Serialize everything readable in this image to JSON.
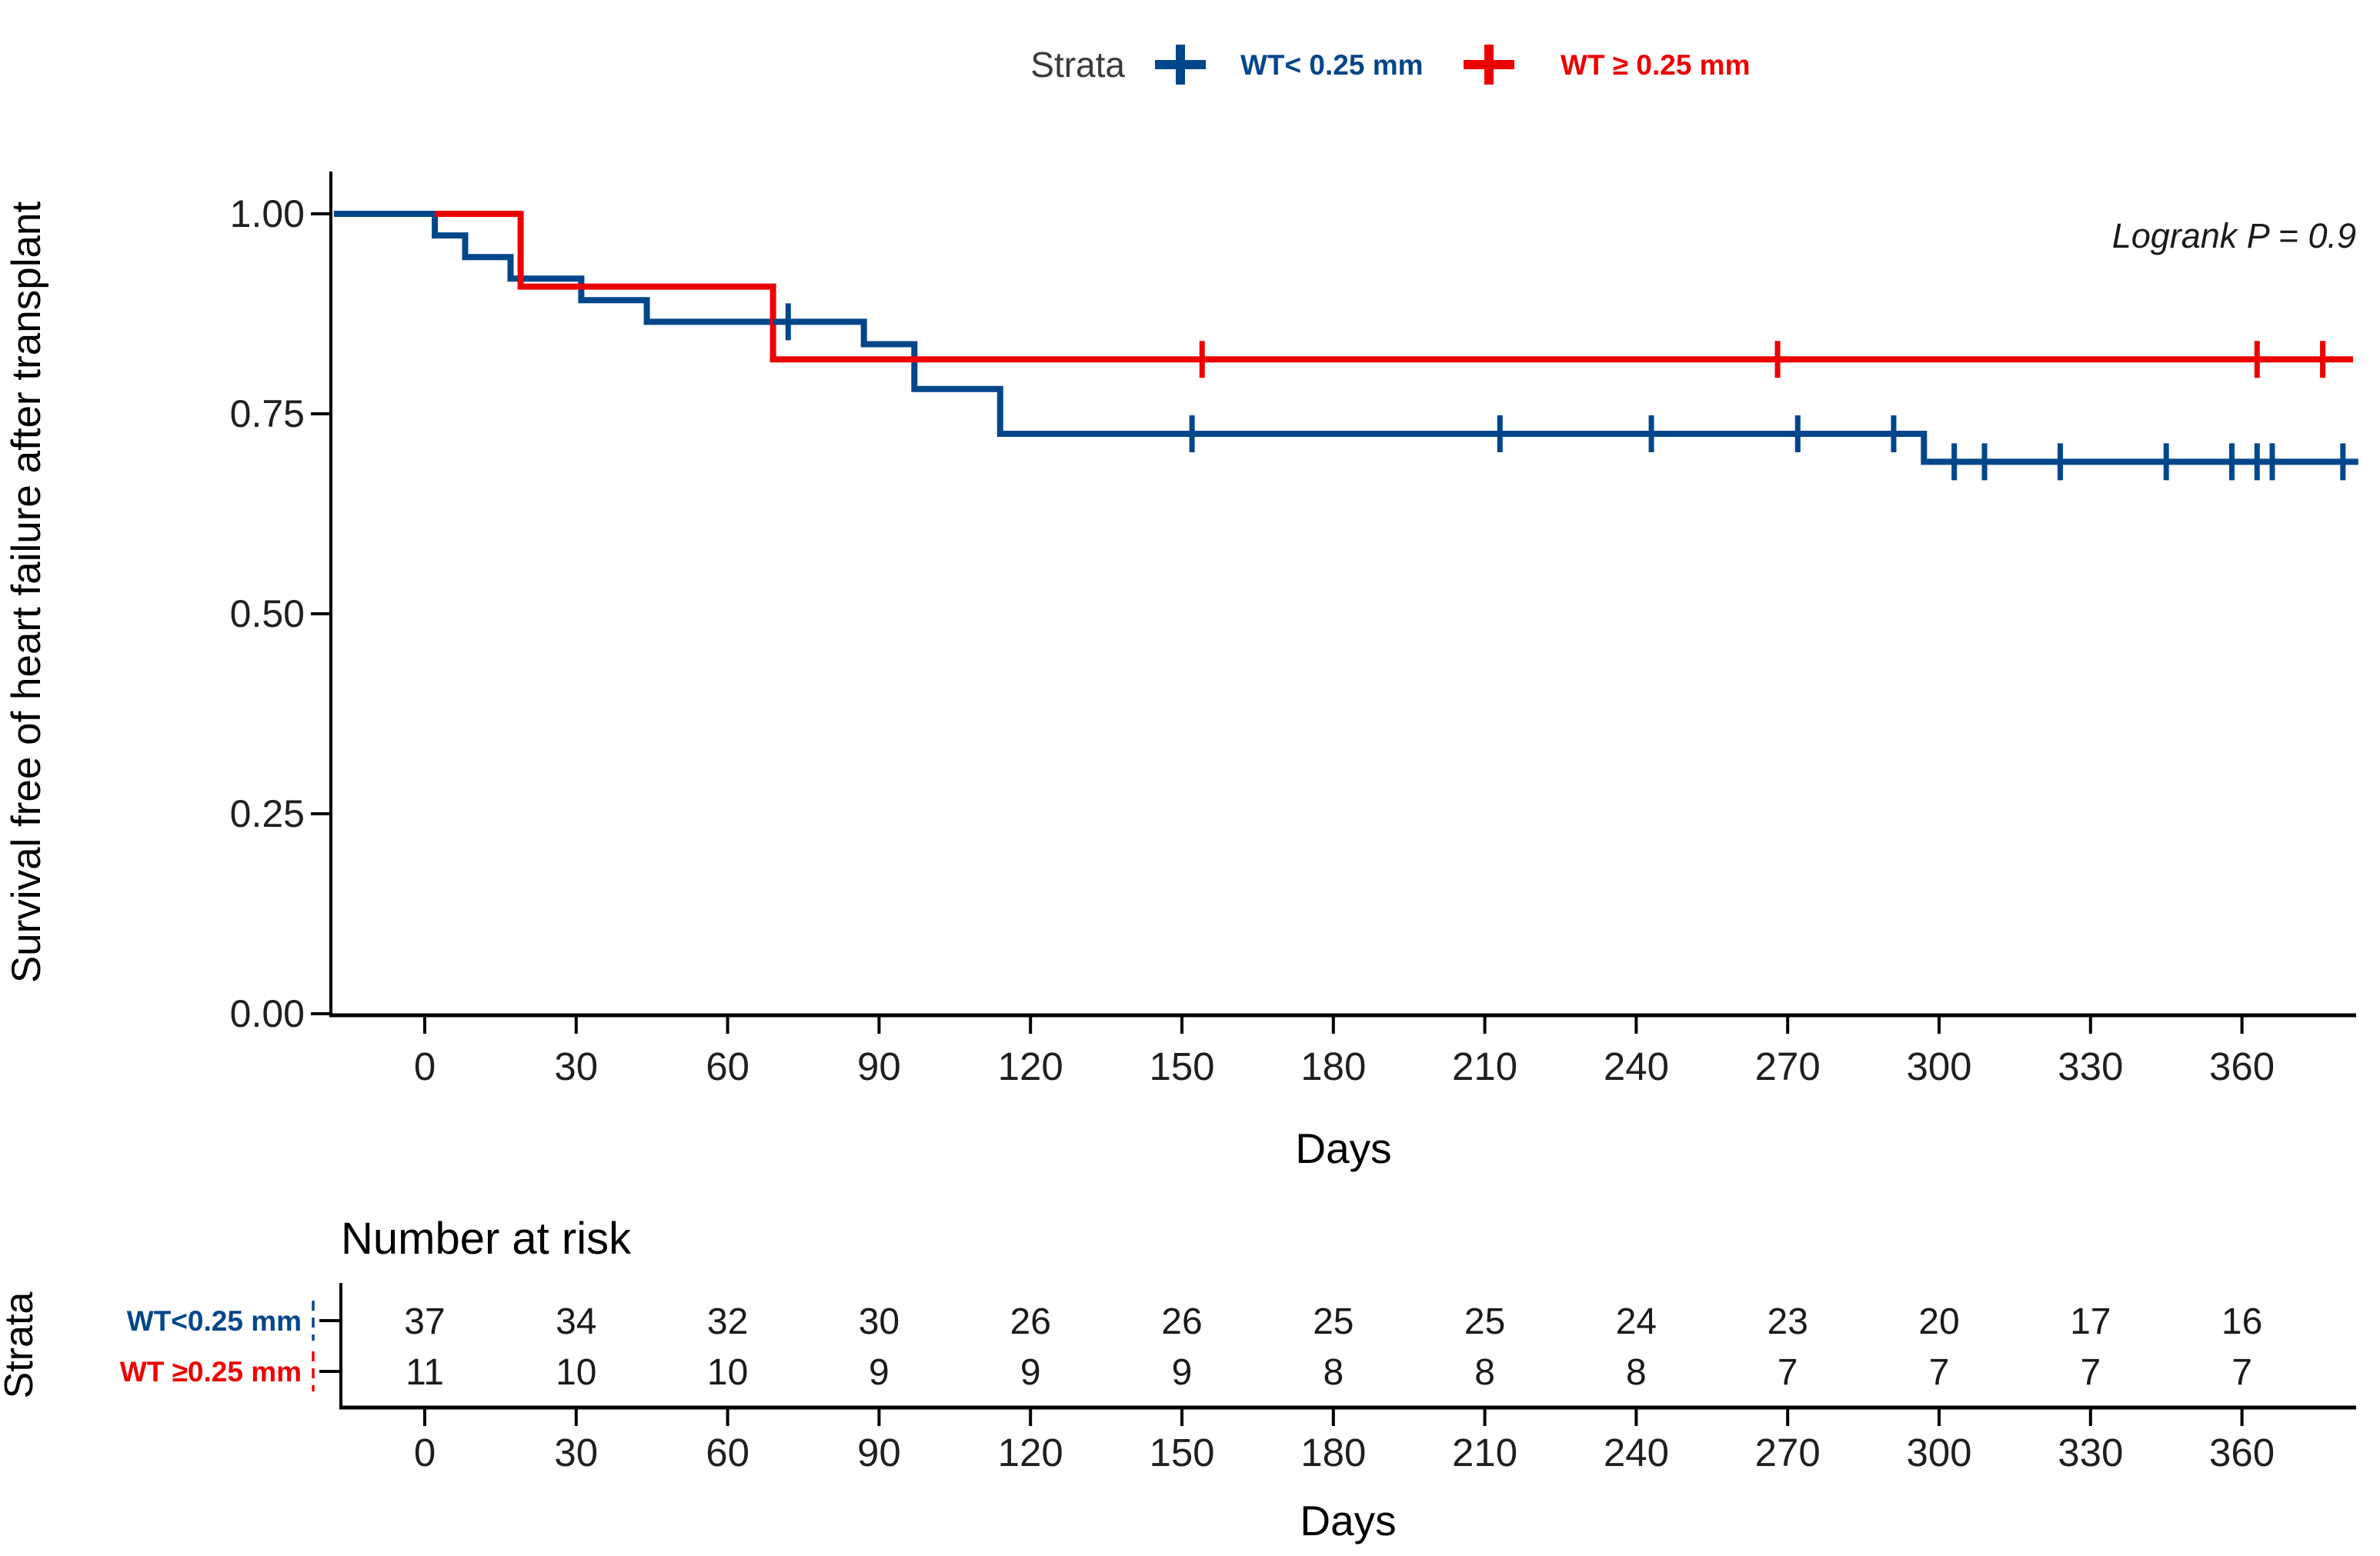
{
  "legend": {
    "title": "Strata",
    "series": [
      {
        "label": "WT< 0.25 mm",
        "color": "#00468B"
      },
      {
        "label": "WT ≥ 0.25 mm",
        "color": "#ED0000"
      }
    ]
  },
  "annotation": {
    "logrank": "Logrank P = 0.9"
  },
  "y_axis": {
    "label": "Survival free of heart failure after transplant",
    "ticks": [
      "1.00",
      "0.75",
      "0.50",
      "0.25",
      "0.00"
    ]
  },
  "x_axis": {
    "label": "Days",
    "ticks": [
      0,
      30,
      60,
      90,
      120,
      150,
      180,
      210,
      240,
      270,
      300,
      330,
      360
    ]
  },
  "risk_table": {
    "title": "Number at risk",
    "strata_label": "Strata",
    "x_label": "Days",
    "x_ticks": [
      0,
      30,
      60,
      90,
      120,
      150,
      180,
      210,
      240,
      270,
      300,
      330,
      360
    ],
    "rows": [
      {
        "label": "WT<0.25 mm",
        "color": "#00468B",
        "counts": [
          37,
          34,
          32,
          30,
          26,
          26,
          25,
          25,
          24,
          23,
          20,
          17,
          16
        ]
      },
      {
        "label": "WT ≥0.25 mm",
        "color": "#ED0000",
        "counts": [
          11,
          10,
          10,
          9,
          9,
          9,
          8,
          8,
          8,
          7,
          7,
          7,
          7
        ]
      }
    ]
  },
  "chart_data": {
    "type": "line",
    "subtype": "kaplan-meier-step",
    "title": "",
    "xlabel": "Days",
    "ylabel": "Survival free of heart failure after transplant",
    "xlim": [
      -18,
      385
    ],
    "ylim": [
      0,
      1
    ],
    "grid": false,
    "legend_position": "top",
    "y_ticks": [
      1.0,
      0.75,
      0.5,
      0.25,
      0.0
    ],
    "x_ticks": [
      0,
      30,
      60,
      90,
      120,
      150,
      180,
      210,
      240,
      270,
      300,
      330,
      360
    ],
    "series": [
      {
        "name": "WT< 0.25 mm",
        "color": "#00468B",
        "steps": [
          [
            -18,
            1.0
          ],
          [
            2,
            0.973
          ],
          [
            8,
            0.946
          ],
          [
            17,
            0.919
          ],
          [
            31,
            0.892
          ],
          [
            44,
            0.865
          ],
          [
            87,
            0.837
          ],
          [
            97,
            0.781
          ],
          [
            114,
            0.725
          ],
          [
            297,
            0.69
          ],
          [
            383,
            0.69
          ]
        ],
        "censor_marks": [
          [
            72,
            0.865
          ],
          [
            152,
            0.725
          ],
          [
            213,
            0.725
          ],
          [
            243,
            0.725
          ],
          [
            272,
            0.725
          ],
          [
            291,
            0.725
          ],
          [
            303,
            0.69
          ],
          [
            309,
            0.69
          ],
          [
            324,
            0.69
          ],
          [
            345,
            0.69
          ],
          [
            358,
            0.69
          ],
          [
            363,
            0.69
          ],
          [
            366,
            0.69
          ],
          [
            380,
            0.69
          ]
        ]
      },
      {
        "name": "WT ≥ 0.25 mm",
        "color": "#ED0000",
        "steps": [
          [
            2,
            1.0
          ],
          [
            19,
            0.909
          ],
          [
            69,
            0.818
          ],
          [
            382,
            0.818
          ]
        ],
        "censor_marks": [
          [
            154,
            0.818
          ],
          [
            268,
            0.818
          ],
          [
            363,
            0.818
          ],
          [
            376,
            0.818
          ]
        ]
      }
    ],
    "annotations": [
      {
        "text": "Logrank P = 0.9",
        "x": 382,
        "y": 0.98,
        "style": "italic",
        "align": "right"
      }
    ]
  }
}
